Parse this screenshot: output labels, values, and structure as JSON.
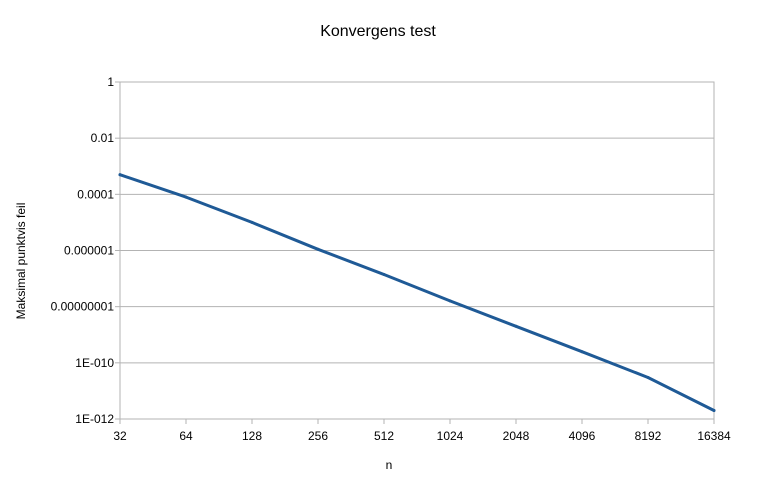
{
  "chart_data": {
    "type": "line",
    "title": "Konvergens test",
    "xlabel": "n",
    "ylabel": "Maksimal punktvis feil",
    "x_scale": "log2",
    "y_scale": "log10",
    "x_ticks": [
      "32",
      "64",
      "128",
      "256",
      "512",
      "1024",
      "2048",
      "4096",
      "8192",
      "16384"
    ],
    "y_ticks": [
      "1",
      "0.01",
      "0.0001",
      "0.000001",
      "0.00000001",
      "1E-010",
      "1E-012"
    ],
    "xlim": [
      32,
      16384
    ],
    "ylim": [
      1e-12,
      1
    ],
    "grid": "horizontal",
    "legend": "none",
    "series": [
      {
        "color": "#1f5a96",
        "x": [
          32,
          64,
          128,
          256,
          512,
          1024,
          2048,
          4096,
          8192,
          16384
        ],
        "y": [
          0.0005,
          8e-05,
          1e-05,
          1.1e-06,
          1.4e-07,
          1.6e-08,
          2e-09,
          2.5e-10,
          3e-11,
          2e-12
        ]
      }
    ]
  }
}
